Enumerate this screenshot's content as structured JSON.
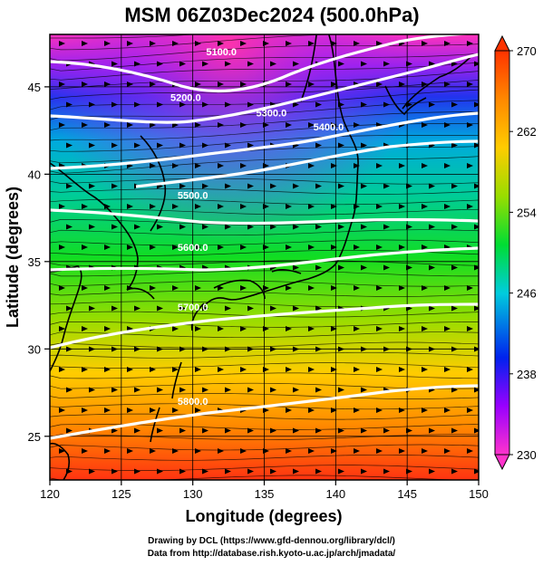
{
  "title": "MSM 06Z03Dec2024 (500.0hPa)",
  "axes": {
    "xlabel": "Longitude (degrees)",
    "ylabel": "Latitude  (degrees)",
    "x_range": [
      120,
      150
    ],
    "y_range": [
      22.5,
      48
    ],
    "x_ticks": [
      "120",
      "125",
      "130",
      "135",
      "140",
      "145",
      "150"
    ],
    "y_ticks": [
      "25",
      "30",
      "35",
      "40",
      "45"
    ]
  },
  "colorbar": {
    "range": [
      230,
      270
    ],
    "labels": [
      "270",
      "262",
      "254",
      "246",
      "238",
      "230"
    ],
    "colors_bottom_to_top": [
      "#ff33cc",
      "#9900ff",
      "#0022ee",
      "#00ccdd",
      "#00dd33",
      "#99dd00",
      "#ffcc00",
      "#ff8800",
      "#ff3300"
    ]
  },
  "chart_data": {
    "type": "heatmap",
    "variable_range_K": [
      230,
      270
    ],
    "contours": [
      {
        "label": "5100.0",
        "lon": 132,
        "lat": 46.8
      },
      {
        "label": "5200.0",
        "lon": 129.5,
        "lat": 44.2
      },
      {
        "label": "5300.0",
        "lon": 135.5,
        "lat": 43.3
      },
      {
        "label": "5400.0",
        "lon": 139.5,
        "lat": 42.5
      },
      {
        "label": "5500.0",
        "lon": 130,
        "lat": 38.6
      },
      {
        "label": "5600.0",
        "lon": 130,
        "lat": 35.6
      },
      {
        "label": "5700.0",
        "lon": 130,
        "lat": 32.2
      },
      {
        "label": "5800.0",
        "lon": 130,
        "lat": 26.8
      }
    ]
  },
  "credits": {
    "line1": "Drawing by DCL (https://www.gfd-dennou.org/library/dcl/)",
    "line2": "Data from http://database.rish.kyoto-u.ac.jp/arch/jmadata/"
  }
}
